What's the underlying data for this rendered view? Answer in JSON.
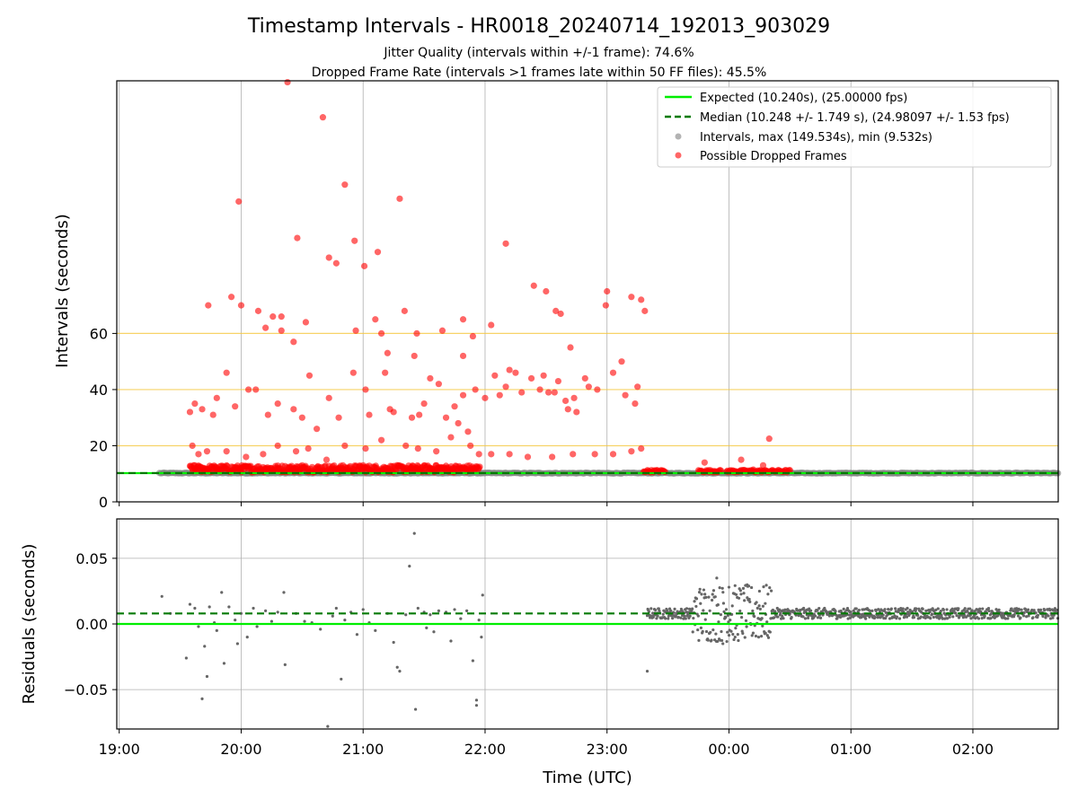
{
  "chart_data": {
    "title": "Timestamp Intervals - HR0018_20240714_192013_903029",
    "subtitles": [
      "Jitter Quality (intervals within +/-1 frame): 74.6%",
      "Dropped Frame Rate (intervals >1 frames late within 50 FF files): 45.5%"
    ],
    "xlabel": "Time (UTC)",
    "x_ticks": [
      "19:00",
      "20:00",
      "21:00",
      "22:00",
      "23:00",
      "00:00",
      "01:00",
      "02:00"
    ],
    "x_range_hours": [
      18.98,
      26.7
    ],
    "panels": [
      {
        "id": "intervals",
        "type": "scatter",
        "ylabel": "Intervals (seconds)",
        "ylim": [
          0,
          150
        ],
        "y_ticks": [
          0,
          20,
          40,
          60
        ],
        "threshold_lines": [
          20,
          40,
          60
        ],
        "threshold_color": "#f5c842",
        "grid": true,
        "legend_position": "top-right",
        "legend": [
          "Expected (10.240s), (25.00000 fps)",
          "Median (10.248 +/- 1.749 s), (24.98097 +/- 1.53 fps)",
          "Intervals, max (149.534s), min (9.532s)",
          "Possible Dropped Frames"
        ],
        "expected_value": 10.24,
        "median_value": 10.248,
        "expected_color": "#00ee00",
        "median_color": "#007a00",
        "intervals_color": "#808080",
        "dropped_color": "#ff0000",
        "intervals_x_range": [
          19.33,
          26.7
        ],
        "dropped_frames": [
          [
            20.38,
            149.5
          ],
          [
            20.67,
            137.0
          ],
          [
            19.98,
            107.0
          ],
          [
            20.85,
            113.0
          ],
          [
            21.3,
            108.0
          ],
          [
            20.46,
            94.0
          ],
          [
            20.72,
            87.0
          ],
          [
            20.78,
            85.0
          ],
          [
            20.93,
            93.0
          ],
          [
            21.01,
            84.0
          ],
          [
            21.12,
            89.0
          ],
          [
            22.17,
            92.0
          ],
          [
            20.0,
            70.0
          ],
          [
            19.73,
            70.0
          ],
          [
            19.92,
            73.0
          ],
          [
            20.14,
            68.0
          ],
          [
            20.26,
            66.0
          ],
          [
            20.33,
            66.0
          ],
          [
            20.53,
            64.0
          ],
          [
            21.1,
            65.0
          ],
          [
            21.34,
            68.0
          ],
          [
            22.05,
            63.0
          ],
          [
            22.4,
            77.0
          ],
          [
            22.5,
            75.0
          ],
          [
            22.58,
            68.0
          ],
          [
            22.62,
            67.0
          ],
          [
            22.99,
            70.0
          ],
          [
            23.0,
            75.0
          ],
          [
            23.2,
            73.0
          ],
          [
            23.28,
            72.0
          ],
          [
            23.31,
            68.0
          ],
          [
            20.2,
            62.0
          ],
          [
            20.33,
            61.0
          ],
          [
            20.94,
            61.0
          ],
          [
            21.15,
            60.0
          ],
          [
            21.44,
            60.0
          ],
          [
            21.65,
            61.0
          ],
          [
            21.82,
            65.0
          ],
          [
            21.9,
            59.0
          ],
          [
            20.43,
            57.0
          ],
          [
            21.2,
            53.0
          ],
          [
            21.42,
            52.0
          ],
          [
            21.82,
            52.0
          ],
          [
            22.08,
            45.0
          ],
          [
            22.2,
            47.0
          ],
          [
            22.25,
            46.0
          ],
          [
            22.38,
            44.0
          ],
          [
            22.48,
            45.0
          ],
          [
            22.7,
            55.0
          ],
          [
            22.82,
            44.0
          ],
          [
            23.12,
            50.0
          ],
          [
            23.05,
            46.0
          ],
          [
            19.88,
            46.0
          ],
          [
            19.8,
            37.0
          ],
          [
            20.06,
            40.0
          ],
          [
            20.12,
            40.0
          ],
          [
            20.43,
            33.0
          ],
          [
            20.5,
            30.0
          ],
          [
            20.56,
            45.0
          ],
          [
            20.72,
            37.0
          ],
          [
            20.92,
            46.0
          ],
          [
            21.02,
            40.0
          ],
          [
            21.18,
            46.0
          ],
          [
            21.22,
            33.0
          ],
          [
            21.4,
            30.0
          ],
          [
            21.55,
            44.0
          ],
          [
            21.62,
            42.0
          ],
          [
            21.75,
            34.0
          ],
          [
            21.82,
            38.0
          ],
          [
            21.92,
            40.0
          ],
          [
            22.0,
            37.0
          ],
          [
            22.17,
            41.0
          ],
          [
            22.3,
            39.0
          ],
          [
            22.45,
            40.0
          ],
          [
            22.57,
            39.0
          ],
          [
            22.6,
            43.0
          ],
          [
            22.66,
            36.0
          ],
          [
            22.73,
            37.0
          ],
          [
            22.85,
            41.0
          ],
          [
            22.92,
            40.0
          ],
          [
            23.15,
            38.0
          ],
          [
            23.25,
            41.0
          ],
          [
            23.23,
            35.0
          ],
          [
            19.58,
            32.0
          ],
          [
            19.62,
            35.0
          ],
          [
            19.68,
            33.0
          ],
          [
            19.77,
            31.0
          ],
          [
            19.95,
            34.0
          ],
          [
            20.22,
            31.0
          ],
          [
            20.3,
            35.0
          ],
          [
            20.62,
            26.0
          ],
          [
            20.8,
            30.0
          ],
          [
            21.05,
            31.0
          ],
          [
            21.25,
            32.0
          ],
          [
            21.46,
            31.0
          ],
          [
            21.5,
            35.0
          ],
          [
            21.68,
            30.0
          ],
          [
            21.78,
            28.0
          ],
          [
            21.86,
            25.0
          ],
          [
            22.12,
            38.0
          ],
          [
            22.52,
            39.0
          ],
          [
            22.68,
            33.0
          ],
          [
            22.75,
            32.0
          ],
          [
            19.6,
            20.0
          ],
          [
            19.65,
            17.0
          ],
          [
            19.72,
            18.0
          ],
          [
            19.88,
            18.0
          ],
          [
            20.04,
            16.0
          ],
          [
            20.18,
            17.0
          ],
          [
            20.3,
            20.0
          ],
          [
            20.45,
            18.0
          ],
          [
            20.55,
            19.0
          ],
          [
            20.7,
            15.0
          ],
          [
            20.85,
            20.0
          ],
          [
            21.02,
            19.0
          ],
          [
            21.15,
            22.0
          ],
          [
            21.35,
            20.0
          ],
          [
            21.45,
            19.0
          ],
          [
            21.6,
            18.0
          ],
          [
            21.72,
            23.0
          ],
          [
            21.88,
            20.0
          ],
          [
            21.95,
            17.0
          ],
          [
            22.05,
            17.0
          ],
          [
            22.2,
            17.0
          ],
          [
            22.35,
            16.0
          ],
          [
            22.55,
            16.0
          ],
          [
            22.72,
            17.0
          ],
          [
            22.9,
            17.0
          ],
          [
            23.05,
            17.0
          ],
          [
            23.2,
            18.0
          ],
          [
            23.28,
            19.0
          ],
          [
            19.62,
            13.0
          ],
          [
            19.8,
            12.0
          ],
          [
            20.0,
            12.0
          ],
          [
            20.2,
            12.0
          ],
          [
            20.5,
            13.0
          ],
          [
            20.8,
            12.0
          ],
          [
            21.0,
            13.0
          ],
          [
            21.2,
            12.0
          ],
          [
            21.4,
            12.0
          ],
          [
            21.6,
            13.0
          ],
          [
            21.8,
            12.0
          ],
          [
            23.8,
            14.0
          ],
          [
            24.1,
            15.0
          ],
          [
            24.28,
            13.0
          ],
          [
            24.33,
            22.5
          ],
          [
            24.2,
            11.5
          ]
        ],
        "dropped_bands": [
          [
            19.58,
            21.96
          ],
          [
            23.3,
            23.48
          ],
          [
            23.75,
            23.94
          ],
          [
            23.98,
            24.5
          ]
        ]
      },
      {
        "id": "residuals",
        "type": "scatter",
        "ylabel": "Residuals (seconds)",
        "ylim": [
          -0.08,
          0.08
        ],
        "y_ticks": [
          0.05,
          0.0,
          -0.05
        ],
        "y_tick_labels": [
          "0.05",
          "0.00",
          "−0.05"
        ],
        "grid": true,
        "expected_value": 0.0,
        "median_value": 0.008,
        "expected_color": "#00ee00",
        "median_color": "#007a00",
        "points_color": "#666666",
        "residuals": [
          [
            19.35,
            0.021
          ],
          [
            19.42,
            0.008
          ],
          [
            19.55,
            -0.026
          ],
          [
            19.58,
            0.015
          ],
          [
            19.62,
            0.012
          ],
          [
            19.65,
            -0.002
          ],
          [
            19.68,
            -0.057
          ],
          [
            19.7,
            -0.017
          ],
          [
            19.72,
            -0.04
          ],
          [
            19.74,
            0.013
          ],
          [
            19.78,
            0.001
          ],
          [
            19.8,
            -0.005
          ],
          [
            19.84,
            0.024
          ],
          [
            19.86,
            -0.03
          ],
          [
            19.9,
            0.013
          ],
          [
            19.95,
            0.003
          ],
          [
            19.97,
            -0.015
          ],
          [
            20.0,
            0.008
          ],
          [
            20.05,
            -0.01
          ],
          [
            20.1,
            0.012
          ],
          [
            20.13,
            -0.002
          ],
          [
            20.2,
            0.01
          ],
          [
            20.25,
            0.002
          ],
          [
            20.3,
            0.009
          ],
          [
            20.35,
            0.024
          ],
          [
            20.36,
            -0.031
          ],
          [
            20.45,
            0.008
          ],
          [
            20.52,
            0.002
          ],
          [
            20.58,
            0.001
          ],
          [
            20.65,
            -0.004
          ],
          [
            20.71,
            -0.078
          ],
          [
            20.75,
            0.006
          ],
          [
            20.78,
            0.012
          ],
          [
            20.82,
            -0.042
          ],
          [
            20.85,
            0.003
          ],
          [
            20.9,
            0.009
          ],
          [
            20.95,
            -0.008
          ],
          [
            21.0,
            0.011
          ],
          [
            21.05,
            0.001
          ],
          [
            21.1,
            -0.005
          ],
          [
            21.2,
            0.008
          ],
          [
            21.25,
            -0.014
          ],
          [
            21.28,
            -0.033
          ],
          [
            21.3,
            -0.036
          ],
          [
            21.35,
            0.007
          ],
          [
            21.38,
            0.044
          ],
          [
            21.42,
            0.069
          ],
          [
            21.43,
            -0.065
          ],
          [
            21.45,
            0.012
          ],
          [
            21.5,
            0.009
          ],
          [
            21.52,
            -0.003
          ],
          [
            21.55,
            0.007
          ],
          [
            21.58,
            -0.006
          ],
          [
            21.62,
            0.01
          ],
          [
            21.68,
            0.009
          ],
          [
            21.72,
            -0.013
          ],
          [
            21.75,
            0.011
          ],
          [
            21.8,
            0.004
          ],
          [
            21.85,
            0.01
          ],
          [
            21.9,
            -0.028
          ],
          [
            21.93,
            -0.058
          ],
          [
            21.93,
            -0.062
          ],
          [
            21.95,
            0.003
          ],
          [
            21.97,
            -0.01
          ],
          [
            21.98,
            0.022
          ],
          [
            23.33,
            -0.036
          ],
          [
            23.9,
            0.035
          ],
          [
            24.0,
            0.028
          ],
          [
            23.95,
            -0.015
          ],
          [
            24.05,
            -0.01
          ],
          [
            24.15,
            0.02
          ],
          [
            24.25,
            0.025
          ],
          [
            24.3,
            -0.007
          ]
        ],
        "dense_band_x_range": [
          23.33,
          26.7
        ],
        "dense_band_center": 0.008,
        "dense_band_halfwidth": 0.004,
        "noisy_region": [
          23.7,
          24.35
        ]
      }
    ]
  }
}
